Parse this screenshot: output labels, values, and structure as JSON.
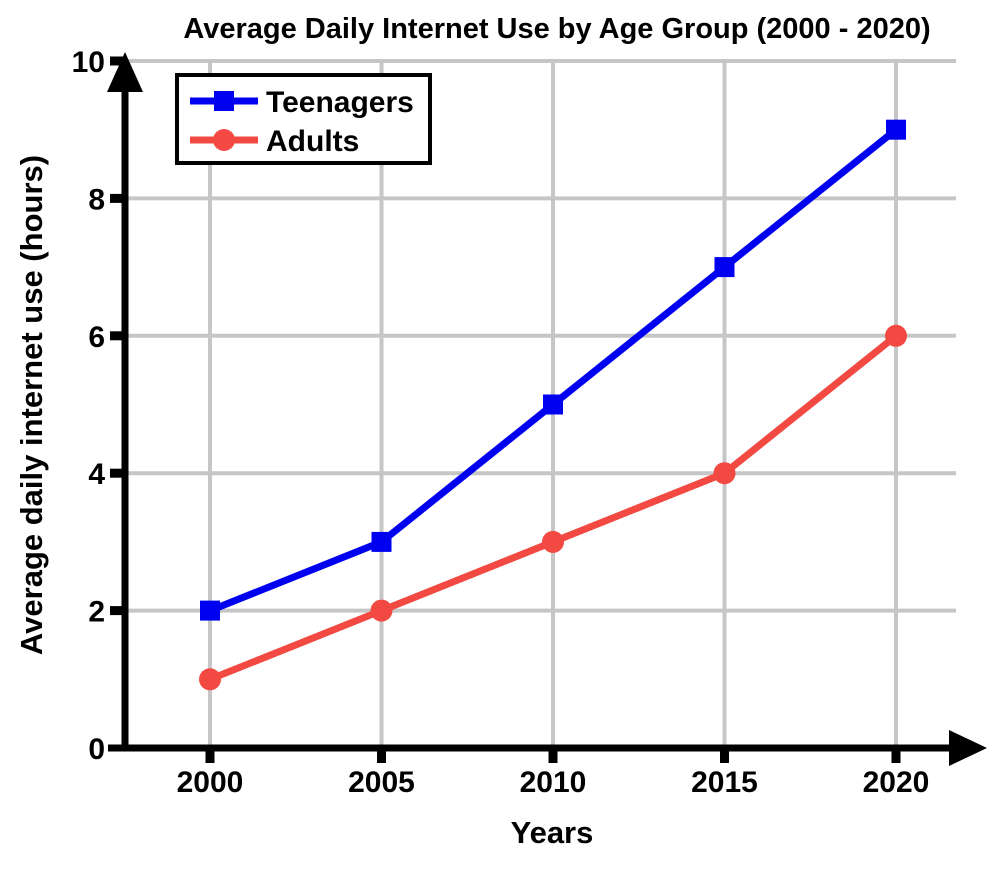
{
  "chart_data": {
    "type": "line",
    "title": "Average Daily Internet Use by Age Group (2000 - 2020)",
    "xlabel": "Years",
    "ylabel": "Average daily internet use (hours)",
    "categories": [
      "2000",
      "2005",
      "2010",
      "2015",
      "2020"
    ],
    "x": [
      2000,
      2005,
      2010,
      2015,
      2020
    ],
    "series": [
      {
        "name": "Teenagers",
        "values": [
          2,
          3,
          5,
          7,
          9
        ],
        "color": "#0000F0",
        "marker": "square"
      },
      {
        "name": "Adults",
        "values": [
          1,
          2,
          3,
          4,
          6
        ],
        "color": "#F24A42",
        "marker": "circle"
      }
    ],
    "y_ticks": [
      0,
      2,
      4,
      6,
      8,
      10
    ],
    "ylim": [
      0,
      10
    ],
    "grid": true,
    "legend_position": "top-left",
    "colors": {
      "axis": "#000000",
      "grid": "#C6C6C6",
      "text": "#000000",
      "background": "#FFFFFF",
      "legend_border": "#000000",
      "legend_background": "#FFFFFF"
    }
  }
}
